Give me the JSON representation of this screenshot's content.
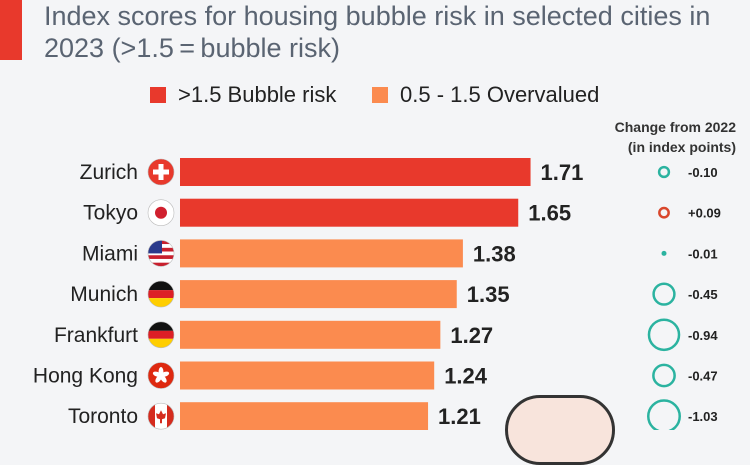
{
  "title": "Index scores for housing bubble risk in selected cities in 2023 (>1.5 = bubble risk)",
  "legend": [
    {
      "label": ">1.5 Bubble risk",
      "color": "#e8392c"
    },
    {
      "label": "0.5 - 1.5 Overvalued",
      "color": "#fb8b4f"
    }
  ],
  "change_header": [
    "Change from 2022",
    "(in index points)"
  ],
  "colors": {
    "bubble": "#e8392c",
    "overvalued": "#fb8b4f",
    "circle_negative": "#2bb3a0",
    "circle_positive": "#d9472c"
  },
  "chart_data": {
    "type": "bar",
    "orientation": "horizontal",
    "categories": [
      "Zurich",
      "Tokyo",
      "Miami",
      "Munich",
      "Frankfurt",
      "Hong Kong",
      "Toronto"
    ],
    "flag_icons": [
      "switzerland-flag-icon",
      "japan-flag-icon",
      "usa-flag-icon",
      "germany-flag-icon",
      "germany-flag-icon",
      "hong-kong-flag-icon",
      "canada-flag-icon"
    ],
    "values": [
      1.71,
      1.65,
      1.38,
      1.35,
      1.27,
      1.24,
      1.21
    ],
    "value_labels": [
      "1.71",
      "1.65",
      "1.38",
      "1.35",
      "1.27",
      "1.24",
      "1.21"
    ],
    "risk_class": [
      "bubble",
      "bubble",
      "overvalued",
      "overvalued",
      "overvalued",
      "overvalued",
      "overvalued"
    ],
    "change_from_2022": [
      -0.1,
      0.09,
      -0.01,
      -0.45,
      -0.94,
      -0.47,
      -1.03
    ],
    "change_labels": [
      "-0.10",
      "+0.09",
      "-0.01",
      "-0.45",
      "-0.94",
      "-0.47",
      "-1.03"
    ]
  }
}
